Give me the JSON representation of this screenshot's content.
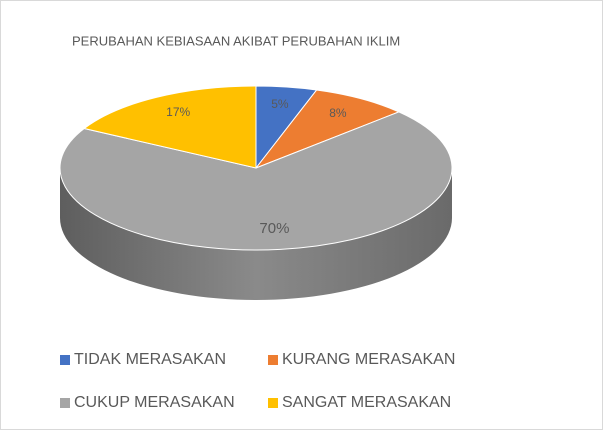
{
  "chart_data": {
    "type": "pie3d",
    "title": "PERUBAHAN KEBIASAAN AKIBAT PERUBAHAN IKLIM",
    "categories": [
      "TIDAK MERASAKAN",
      "KURANG MERASAKAN",
      "CUKUP MERASAKAN",
      "SANGAT MERASAKAN"
    ],
    "values": [
      5,
      8,
      70,
      17
    ],
    "value_labels": [
      "5%",
      "8%",
      "70%",
      "17%"
    ],
    "colors": [
      "#4472c4",
      "#ed7d31",
      "#a5a5a5",
      "#ffc000"
    ],
    "legend": "bottom"
  }
}
